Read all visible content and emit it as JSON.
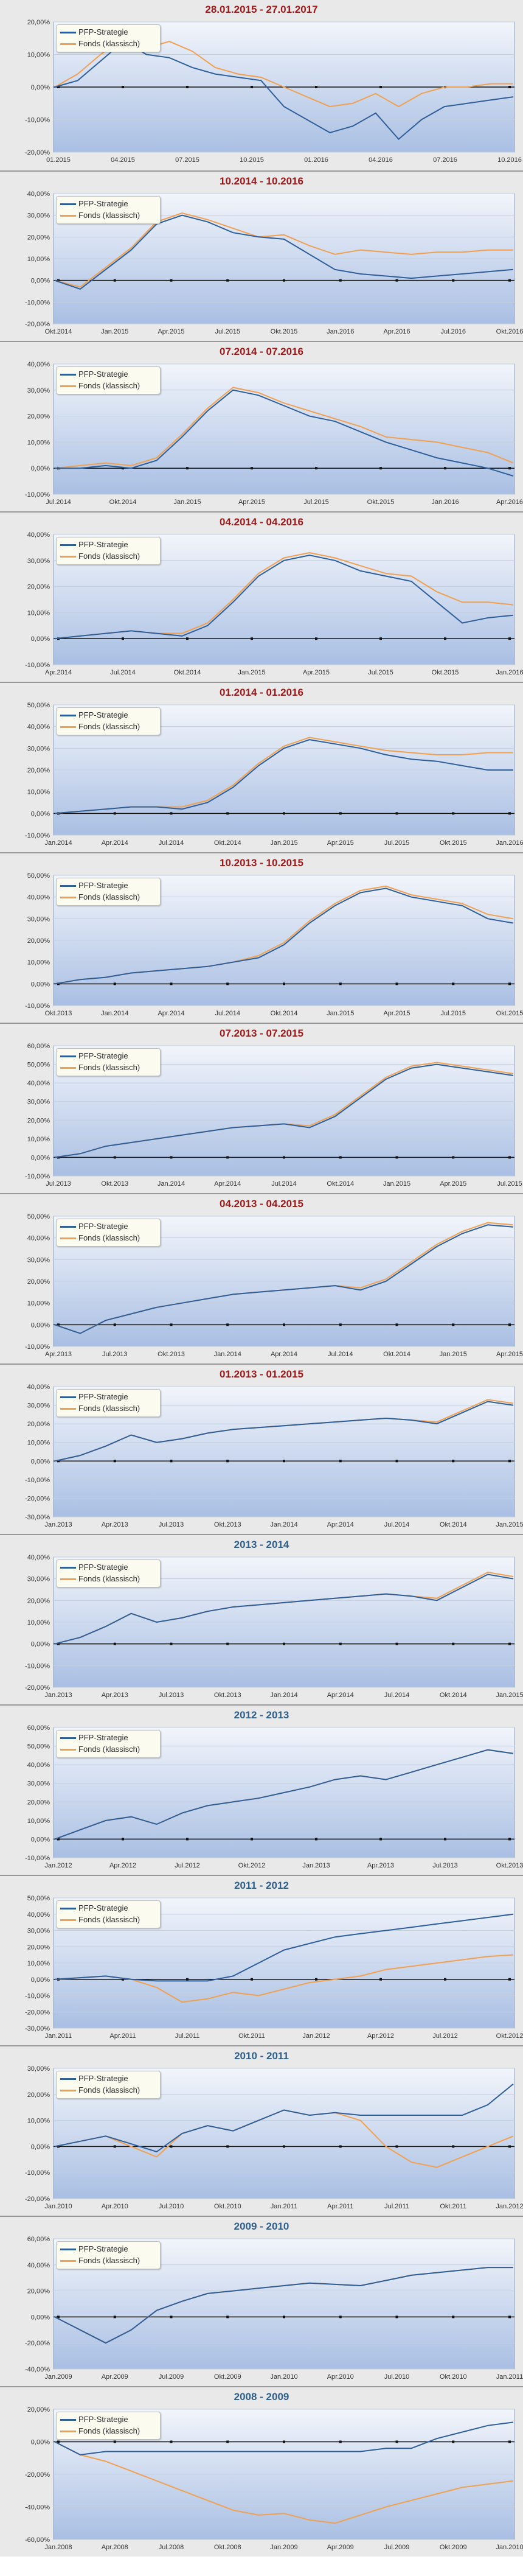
{
  "colors": {
    "strategie": "#2f5f9a",
    "fonds": "#f0a050",
    "title_red": "#a01818",
    "title_blue": "#2f5f8e"
  },
  "legend_labels": {
    "strategie": "PFP-Strategie",
    "fonds": "Fonds (klassisch)"
  },
  "chart_data": [
    {
      "type": "line",
      "title": "28.01.2015 - 27.01.2017",
      "title_color": "red",
      "y_ticks": [
        "20,00%",
        "10,00%",
        "0,00%",
        "-10,00%",
        "-20,00%"
      ],
      "ylim": [
        -20,
        20
      ],
      "x_ticks": [
        "01.2015",
        "04.2015",
        "07.2015",
        "10.2015",
        "01.2016",
        "04.2016",
        "07.2016",
        "10.2016"
      ],
      "series": [
        {
          "name": "PFP-Strategie",
          "values": [
            0,
            2,
            8,
            14,
            10,
            9,
            6,
            4,
            3,
            2,
            -6,
            -10,
            -14,
            -12,
            -8,
            -16,
            -10,
            -6,
            -5,
            -4,
            -3
          ]
        },
        {
          "name": "Fonds (klassisch)",
          "values": [
            0,
            4,
            10,
            15,
            12,
            14,
            11,
            6,
            4,
            3,
            0,
            -3,
            -6,
            -5,
            -2,
            -6,
            -2,
            0,
            0,
            1,
            1
          ]
        }
      ]
    },
    {
      "type": "line",
      "title": "10.2014 - 10.2016",
      "title_color": "red",
      "y_ticks": [
        "40,00%",
        "30,00%",
        "20,00%",
        "10,00%",
        "0,00%",
        "-10,00%",
        "-20,00%"
      ],
      "ylim": [
        -20,
        40
      ],
      "x_ticks": [
        "Okt.2014",
        "Jan.2015",
        "Apr.2015",
        "Jul.2015",
        "Okt.2015",
        "Jan.2016",
        "Apr.2016",
        "Jul.2016",
        "Okt.2016"
      ],
      "series": [
        {
          "name": "PFP-Strategie",
          "values": [
            0,
            -4,
            5,
            14,
            26,
            30,
            27,
            22,
            20,
            19,
            12,
            5,
            3,
            2,
            1,
            2,
            3,
            4,
            5
          ]
        },
        {
          "name": "Fonds (klassisch)",
          "values": [
            0,
            -3,
            6,
            15,
            27,
            31,
            28,
            24,
            20,
            21,
            16,
            12,
            14,
            13,
            12,
            13,
            13,
            14,
            14
          ]
        }
      ]
    },
    {
      "type": "line",
      "title": "07.2014 - 07.2016",
      "title_color": "red",
      "y_ticks": [
        "40,00%",
        "30,00%",
        "20,00%",
        "10,00%",
        "0,00%",
        "-10,00%"
      ],
      "ylim": [
        -10,
        40
      ],
      "x_ticks": [
        "Jul.2014",
        "Okt.2014",
        "Jan.2015",
        "Apr.2015",
        "Jul.2015",
        "Okt.2015",
        "Jan.2016",
        "Apr.2016"
      ],
      "series": [
        {
          "name": "PFP-Strategie",
          "values": [
            0,
            0,
            1,
            0,
            3,
            12,
            22,
            30,
            28,
            24,
            20,
            18,
            14,
            10,
            7,
            4,
            2,
            0,
            -3
          ]
        },
        {
          "name": "Fonds (klassisch)",
          "values": [
            0,
            1,
            2,
            1,
            4,
            13,
            23,
            31,
            29,
            25,
            22,
            19,
            16,
            12,
            11,
            10,
            8,
            6,
            2
          ]
        }
      ]
    },
    {
      "type": "line",
      "title": "04.2014 - 04.2016",
      "title_color": "red",
      "y_ticks": [
        "40,00%",
        "30,00%",
        "20,00%",
        "10,00%",
        "0,00%",
        "-10,00%"
      ],
      "ylim": [
        -10,
        40
      ],
      "x_ticks": [
        "Apr.2014",
        "Jul.2014",
        "Okt.2014",
        "Jan.2015",
        "Apr.2015",
        "Jul.2015",
        "Okt.2015",
        "Jan.2016"
      ],
      "series": [
        {
          "name": "PFP-Strategie",
          "values": [
            0,
            1,
            2,
            3,
            2,
            1,
            5,
            14,
            24,
            30,
            32,
            30,
            26,
            24,
            22,
            14,
            6,
            8,
            9
          ]
        },
        {
          "name": "Fonds (klassisch)",
          "values": [
            0,
            1,
            2,
            3,
            2,
            2,
            6,
            15,
            25,
            31,
            33,
            31,
            28,
            25,
            24,
            18,
            14,
            14,
            13
          ]
        }
      ]
    },
    {
      "type": "line",
      "title": "01.2014 - 01.2016",
      "title_color": "red",
      "y_ticks": [
        "50,00%",
        "40,00%",
        "30,00%",
        "20,00%",
        "10,00%",
        "0,00%",
        "-10,00%"
      ],
      "ylim": [
        -10,
        50
      ],
      "x_ticks": [
        "Jan.2014",
        "Apr.2014",
        "Jul.2014",
        "Okt.2014",
        "Jan.2015",
        "Apr.2015",
        "Jul.2015",
        "Okt.2015",
        "Jan.2016"
      ],
      "series": [
        {
          "name": "PFP-Strategie",
          "values": [
            0,
            1,
            2,
            3,
            3,
            2,
            5,
            12,
            22,
            30,
            34,
            32,
            30,
            27,
            25,
            24,
            22,
            20,
            20
          ]
        },
        {
          "name": "Fonds (klassisch)",
          "values": [
            0,
            1,
            2,
            3,
            3,
            3,
            6,
            13,
            23,
            31,
            35,
            33,
            31,
            29,
            28,
            27,
            27,
            28,
            28
          ]
        }
      ]
    },
    {
      "type": "line",
      "title": "10.2013 - 10.2015",
      "title_color": "red",
      "y_ticks": [
        "50,00%",
        "40,00%",
        "30,00%",
        "20,00%",
        "10,00%",
        "0,00%",
        "-10,00%"
      ],
      "ylim": [
        -10,
        50
      ],
      "x_ticks": [
        "Okt.2013",
        "Jan.2014",
        "Apr.2014",
        "Jul.2014",
        "Okt.2014",
        "Jan.2015",
        "Apr.2015",
        "Jul.2015",
        "Okt.2015"
      ],
      "series": [
        {
          "name": "PFP-Strategie",
          "values": [
            0,
            2,
            3,
            5,
            6,
            7,
            8,
            10,
            12,
            18,
            28,
            36,
            42,
            44,
            40,
            38,
            36,
            30,
            28
          ]
        },
        {
          "name": "Fonds (klassisch)",
          "values": [
            0,
            2,
            3,
            5,
            6,
            7,
            8,
            10,
            13,
            19,
            29,
            37,
            43,
            45,
            41,
            39,
            37,
            32,
            30
          ]
        }
      ]
    },
    {
      "type": "line",
      "title": "07.2013 - 07.2015",
      "title_color": "red",
      "y_ticks": [
        "60,00%",
        "50,00%",
        "40,00%",
        "30,00%",
        "20,00%",
        "10,00%",
        "0,00%",
        "-10,00%"
      ],
      "ylim": [
        -10,
        60
      ],
      "x_ticks": [
        "Jul.2013",
        "Okt.2013",
        "Jan.2014",
        "Apr.2014",
        "Jul.2014",
        "Okt.2014",
        "Jan.2015",
        "Apr.2015",
        "Jul.2015"
      ],
      "series": [
        {
          "name": "PFP-Strategie",
          "values": [
            0,
            2,
            6,
            8,
            10,
            12,
            14,
            16,
            17,
            18,
            16,
            22,
            32,
            42,
            48,
            50,
            48,
            46,
            44
          ]
        },
        {
          "name": "Fonds (klassisch)",
          "values": [
            0,
            2,
            6,
            8,
            10,
            12,
            14,
            16,
            17,
            18,
            17,
            23,
            33,
            43,
            49,
            51,
            49,
            47,
            45
          ]
        }
      ]
    },
    {
      "type": "line",
      "title": "04.2013 - 04.2015",
      "title_color": "red",
      "y_ticks": [
        "50,00%",
        "40,00%",
        "30,00%",
        "20,00%",
        "10,00%",
        "0,00%",
        "-10,00%"
      ],
      "ylim": [
        -10,
        50
      ],
      "x_ticks": [
        "Apr.2013",
        "Jul.2013",
        "Okt.2013",
        "Jan.2014",
        "Apr.2014",
        "Jul.2014",
        "Okt.2014",
        "Jan.2015",
        "Apr.2015"
      ],
      "series": [
        {
          "name": "PFP-Strategie",
          "values": [
            0,
            -4,
            2,
            5,
            8,
            10,
            12,
            14,
            15,
            16,
            17,
            18,
            16,
            20,
            28,
            36,
            42,
            46,
            45
          ]
        },
        {
          "name": "Fonds (klassisch)",
          "values": [
            0,
            -4,
            2,
            5,
            8,
            10,
            12,
            14,
            15,
            16,
            17,
            18,
            17,
            21,
            29,
            37,
            43,
            47,
            46
          ]
        }
      ]
    },
    {
      "type": "line",
      "title": "01.2013 - 01.2015",
      "title_color": "red",
      "y_ticks": [
        "40,00%",
        "30,00%",
        "20,00%",
        "10,00%",
        "0,00%",
        "-10,00%",
        "-20,00%",
        "-30,00%"
      ],
      "ylim": [
        -30,
        40
      ],
      "x_ticks": [
        "Jan.2013",
        "Apr.2013",
        "Jul.2013",
        "Okt.2013",
        "Jan.2014",
        "Apr.2014",
        "Jul.2014",
        "Okt.2014",
        "Jan.2015"
      ],
      "series": [
        {
          "name": "PFP-Strategie",
          "values": [
            0,
            3,
            8,
            14,
            10,
            12,
            15,
            17,
            18,
            19,
            20,
            21,
            22,
            23,
            22,
            20,
            26,
            32,
            30
          ]
        },
        {
          "name": "Fonds (klassisch)",
          "values": [
            0,
            3,
            8,
            14,
            10,
            12,
            15,
            17,
            18,
            19,
            20,
            21,
            22,
            23,
            22,
            21,
            27,
            33,
            31
          ]
        }
      ]
    },
    {
      "type": "line",
      "title": "2013 - 2014",
      "title_color": "blue",
      "y_ticks": [
        "40,00%",
        "30,00%",
        "20,00%",
        "10,00%",
        "0,00%",
        "-10,00%",
        "-20,00%"
      ],
      "ylim": [
        -20,
        40
      ],
      "x_ticks": [
        "Jan.2013",
        "Apr.2013",
        "Jul.2013",
        "Okt.2013",
        "Jan.2014",
        "Apr.2014",
        "Jul.2014",
        "Okt.2014",
        "Jan.2015"
      ],
      "series": [
        {
          "name": "PFP-Strategie",
          "values": [
            0,
            3,
            8,
            14,
            10,
            12,
            15,
            17,
            18,
            19,
            20,
            21,
            22,
            23,
            22,
            20,
            26,
            32,
            30
          ]
        },
        {
          "name": "Fonds (klassisch)",
          "values": [
            0,
            3,
            8,
            14,
            10,
            12,
            15,
            17,
            18,
            19,
            20,
            21,
            22,
            23,
            22,
            21,
            27,
            33,
            31
          ]
        }
      ]
    },
    {
      "type": "line",
      "title": "2012 - 2013",
      "title_color": "blue",
      "y_ticks": [
        "60,00%",
        "50,00%",
        "40,00%",
        "30,00%",
        "20,00%",
        "10,00%",
        "0,00%",
        "-10,00%"
      ],
      "ylim": [
        -10,
        60
      ],
      "x_ticks": [
        "Jan.2012",
        "Apr.2012",
        "Jul.2012",
        "Okt.2012",
        "Jan.2013",
        "Apr.2013",
        "Jul.2013",
        "Okt.2013"
      ],
      "series": [
        {
          "name": "PFP-Strategie",
          "values": [
            0,
            5,
            10,
            12,
            8,
            14,
            18,
            20,
            22,
            25,
            28,
            32,
            34,
            32,
            36,
            40,
            44,
            48,
            46
          ]
        },
        {
          "name": "Fonds (klassisch)",
          "values": [
            0,
            5,
            10,
            12,
            8,
            14,
            18,
            20,
            22,
            25,
            28,
            32,
            34,
            32,
            36,
            40,
            44,
            48,
            46
          ]
        }
      ]
    },
    {
      "type": "line",
      "title": "2011 - 2012",
      "title_color": "blue",
      "y_ticks": [
        "50,00%",
        "40,00%",
        "30,00%",
        "20,00%",
        "10,00%",
        "0,00%",
        "-10,00%",
        "-20,00%",
        "-30,00%"
      ],
      "ylim": [
        -30,
        50
      ],
      "x_ticks": [
        "Jan.2011",
        "Apr.2011",
        "Jul.2011",
        "Okt.2011",
        "Jan.2012",
        "Apr.2012",
        "Jul.2012",
        "Okt.2012"
      ],
      "series": [
        {
          "name": "PFP-Strategie",
          "values": [
            0,
            1,
            2,
            0,
            -1,
            -1,
            -1,
            2,
            10,
            18,
            22,
            26,
            28,
            30,
            32,
            34,
            36,
            38,
            40
          ]
        },
        {
          "name": "Fonds (klassisch)",
          "values": [
            0,
            1,
            2,
            0,
            -5,
            -14,
            -12,
            -8,
            -10,
            -6,
            -2,
            0,
            2,
            6,
            8,
            10,
            12,
            14,
            15
          ]
        }
      ]
    },
    {
      "type": "line",
      "title": "2010 - 2011",
      "title_color": "blue",
      "y_ticks": [
        "30,00%",
        "20,00%",
        "10,00%",
        "0,00%",
        "-10,00%",
        "-20,00%"
      ],
      "ylim": [
        -20,
        30
      ],
      "x_ticks": [
        "Jan.2010",
        "Apr.2010",
        "Jul.2010",
        "Okt.2010",
        "Jan.2011",
        "Apr.2011",
        "Jul.2011",
        "Okt.2011",
        "Jan.2012"
      ],
      "series": [
        {
          "name": "PFP-Strategie",
          "values": [
            0,
            2,
            4,
            1,
            -2,
            5,
            8,
            6,
            10,
            14,
            12,
            13,
            12,
            12,
            12,
            12,
            12,
            16,
            24
          ]
        },
        {
          "name": "Fonds (klassisch)",
          "values": [
            0,
            2,
            4,
            0,
            -4,
            5,
            8,
            6,
            10,
            14,
            12,
            13,
            10,
            0,
            -6,
            -8,
            -4,
            0,
            4
          ]
        }
      ]
    },
    {
      "type": "line",
      "title": "2009 - 2010",
      "title_color": "blue",
      "y_ticks": [
        "60,00%",
        "40,00%",
        "20,00%",
        "0,00%",
        "-20,00%",
        "-40,00%"
      ],
      "ylim": [
        -40,
        60
      ],
      "x_ticks": [
        "Jan.2009",
        "Apr.2009",
        "Jul.2009",
        "Okt.2009",
        "Jan.2010",
        "Apr.2010",
        "Jul.2010",
        "Okt.2010",
        "Jan.2011"
      ],
      "series": [
        {
          "name": "PFP-Strategie",
          "values": [
            0,
            -10,
            -20,
            -10,
            5,
            12,
            18,
            20,
            22,
            24,
            26,
            25,
            24,
            28,
            32,
            34,
            36,
            38,
            38
          ]
        },
        {
          "name": "Fonds (klassisch)",
          "values": [
            0,
            -10,
            -20,
            -10,
            5,
            12,
            18,
            20,
            22,
            24,
            26,
            25,
            24,
            28,
            32,
            34,
            36,
            38,
            38
          ]
        }
      ]
    },
    {
      "type": "line",
      "title": "2008 - 2009",
      "title_color": "blue",
      "y_ticks": [
        "20,00%",
        "0,00%",
        "-20,00%",
        "-40,00%",
        "-60,00%"
      ],
      "ylim": [
        -60,
        20
      ],
      "x_ticks": [
        "Jan.2008",
        "Apr.2008",
        "Jul.2008",
        "Okt.2008",
        "Jan.2009",
        "Apr.2009",
        "Jul.2009",
        "Okt.2009",
        "Jan.2010"
      ],
      "series": [
        {
          "name": "PFP-Strategie",
          "values": [
            0,
            -8,
            -6,
            -6,
            -6,
            -6,
            -6,
            -6,
            -6,
            -6,
            -6,
            -6,
            -6,
            -4,
            -4,
            2,
            6,
            10,
            12
          ]
        },
        {
          "name": "Fonds (klassisch)",
          "values": [
            0,
            -8,
            -12,
            -18,
            -24,
            -30,
            -36,
            -42,
            -45,
            -44,
            -48,
            -50,
            -45,
            -40,
            -36,
            -32,
            -28,
            -26,
            -24
          ]
        }
      ]
    }
  ]
}
